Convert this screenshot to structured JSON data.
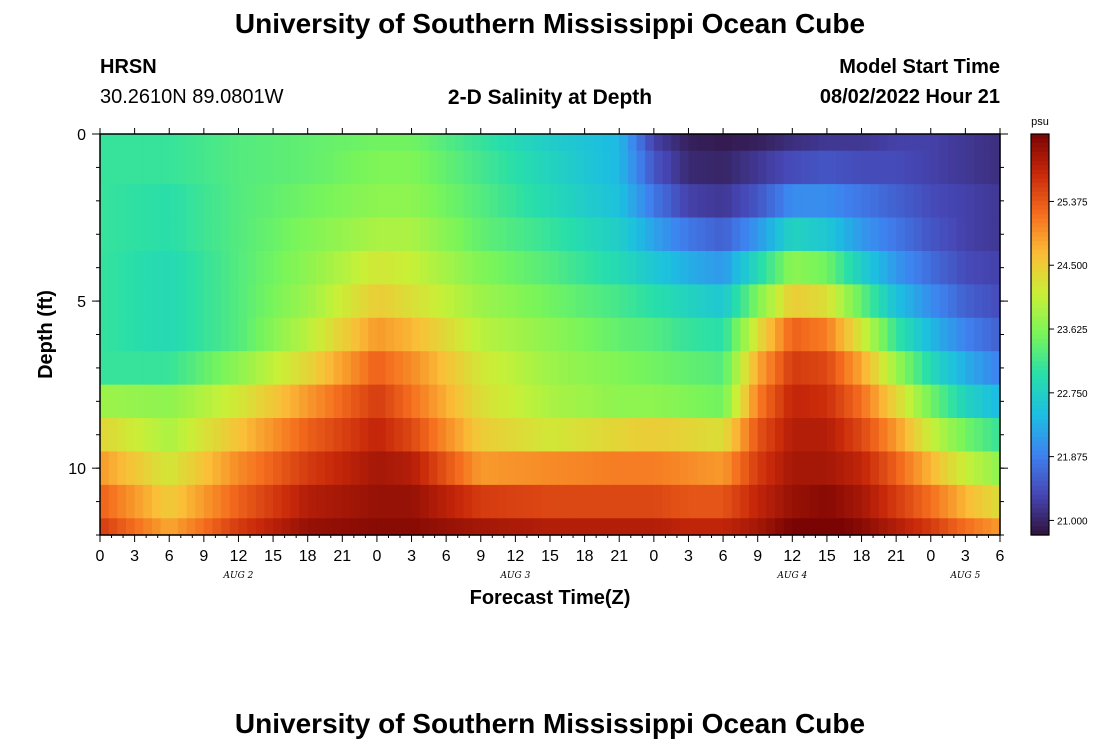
{
  "header": {
    "title": "University of Southern Mississippi Ocean Cube",
    "station": "HRSN",
    "coords": "30.2610N  89.0801W",
    "plot_title": "2-D Salinity at Depth",
    "model_label": "Model Start Time",
    "model_time": "08/02/2022 Hour 21"
  },
  "footer": {
    "title": "University of Southern Mississippi Ocean Cube"
  },
  "chart_data": {
    "type": "heatmap",
    "title": "2-D Salinity at Depth",
    "xlabel": "Forecast Time(Z)",
    "ylabel": "Depth (ft)",
    "x_hours_range": [
      0,
      78
    ],
    "x_ticks": [
      "0",
      "3",
      "6",
      "9",
      "12",
      "15",
      "18",
      "21",
      "0",
      "3",
      "6",
      "9",
      "12",
      "15",
      "18",
      "21",
      "0",
      "3",
      "6",
      "9",
      "12",
      "15",
      "18",
      "21",
      "0",
      "3",
      "6"
    ],
    "date_labels": [
      {
        "label": "AUG 2",
        "hour": 12
      },
      {
        "label": "AUG 3",
        "hour": 36
      },
      {
        "label": "AUG 4",
        "hour": 60
      },
      {
        "label": "AUG 5",
        "hour": 75
      }
    ],
    "y_range": [
      0,
      12
    ],
    "y_ticks": [
      "0",
      "5",
      "10"
    ],
    "y_tick_values": [
      0,
      5,
      10
    ],
    "depth_layers": [
      0,
      1,
      2,
      3,
      4,
      5,
      6,
      7,
      8,
      9,
      10,
      11,
      12
    ],
    "time_hours": [
      0,
      6,
      12,
      18,
      24,
      27,
      33,
      39,
      45,
      48,
      51,
      54,
      57,
      60,
      63,
      66,
      69,
      72,
      75,
      78
    ],
    "salinity": [
      [
        23.1,
        23.1,
        23.3,
        23.4,
        23.5,
        23.5,
        23.1,
        22.7,
        22.4,
        21.3,
        20.95,
        20.9,
        20.95,
        21.1,
        21.2,
        21.2,
        21.3,
        21.3,
        21.2,
        21.1
      ],
      [
        23.1,
        23.1,
        23.3,
        23.4,
        23.6,
        23.6,
        23.2,
        22.8,
        22.4,
        21.5,
        21.05,
        21.0,
        21.2,
        21.4,
        21.5,
        21.4,
        21.4,
        21.3,
        21.2,
        21.1
      ],
      [
        23.1,
        23.0,
        23.3,
        23.5,
        23.7,
        23.7,
        23.3,
        22.9,
        22.5,
        21.8,
        21.3,
        21.2,
        21.5,
        22.0,
        22.0,
        21.8,
        21.6,
        21.4,
        21.3,
        21.2
      ],
      [
        23.1,
        23.0,
        23.3,
        23.6,
        23.9,
        23.9,
        23.4,
        23.1,
        22.7,
        22.2,
        21.8,
        21.6,
        22.1,
        22.8,
        22.6,
        22.1,
        21.8,
        21.5,
        21.3,
        21.2
      ],
      [
        23.1,
        22.9,
        23.3,
        23.7,
        24.2,
        24.1,
        23.6,
        23.3,
        22.9,
        22.6,
        22.3,
        22.1,
        22.9,
        23.7,
        23.5,
        22.7,
        22.1,
        21.7,
        21.4,
        21.3
      ],
      [
        23.1,
        22.9,
        23.3,
        23.8,
        24.5,
        24.3,
        23.8,
        23.5,
        23.2,
        23.0,
        22.8,
        22.6,
        23.6,
        24.5,
        24.3,
        23.4,
        22.5,
        22.0,
        21.6,
        21.4
      ],
      [
        23.1,
        22.9,
        23.3,
        24.0,
        24.9,
        24.7,
        24.0,
        23.7,
        23.4,
        23.3,
        23.1,
        23.0,
        24.3,
        25.3,
        25.1,
        24.2,
        23.1,
        22.4,
        21.9,
        21.6
      ],
      [
        23.1,
        23.1,
        23.7,
        24.4,
        25.3,
        25.0,
        24.2,
        23.8,
        23.6,
        23.5,
        23.4,
        23.3,
        24.8,
        25.6,
        25.5,
        24.8,
        23.8,
        22.9,
        22.3,
        21.9
      ],
      [
        23.8,
        23.7,
        24.2,
        24.9,
        25.6,
        25.2,
        24.3,
        23.9,
        23.7,
        23.7,
        23.6,
        23.5,
        25.1,
        25.8,
        25.7,
        25.2,
        24.4,
        23.5,
        22.8,
        22.4
      ],
      [
        24.4,
        23.9,
        24.6,
        25.3,
        25.8,
        25.5,
        24.5,
        24.2,
        24.4,
        24.5,
        24.4,
        24.3,
        25.4,
        25.9,
        25.9,
        25.5,
        24.9,
        24.1,
        23.5,
        23.1
      ],
      [
        24.9,
        24.2,
        25.0,
        25.6,
        26.0,
        25.9,
        24.9,
        25.0,
        25.1,
        25.1,
        25.0,
        24.9,
        25.6,
        26.0,
        26.0,
        25.8,
        25.3,
        24.7,
        24.1,
        23.7
      ],
      [
        25.3,
        24.5,
        25.3,
        25.9,
        26.1,
        26.1,
        25.6,
        25.5,
        25.5,
        25.5,
        25.4,
        25.4,
        25.8,
        26.1,
        26.2,
        26.0,
        25.6,
        25.2,
        24.7,
        24.3
      ],
      [
        25.6,
        24.8,
        25.6,
        26.1,
        26.2,
        26.2,
        26.0,
        25.9,
        25.9,
        25.9,
        25.8,
        25.8,
        26.0,
        26.3,
        26.4,
        26.2,
        25.9,
        25.6,
        25.2,
        24.9
      ]
    ],
    "colorbar": {
      "unit": "psu",
      "ticks": [
        "25.375",
        "24.500",
        "23.625",
        "22.750",
        "21.875",
        "21.000"
      ],
      "tick_values": [
        25.375,
        24.5,
        23.625,
        22.75,
        21.875,
        21.0
      ],
      "range": [
        20.8,
        26.3
      ],
      "colormap": "turbo"
    }
  }
}
